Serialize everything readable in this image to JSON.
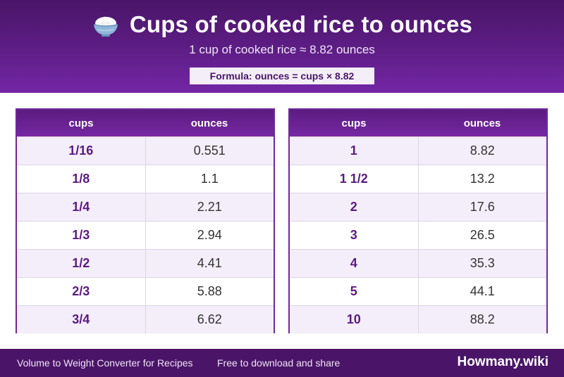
{
  "header": {
    "title": "Cups of cooked rice to ounces",
    "subtitle": "1 cup of cooked rice ≈ 8.82 ounces",
    "formula": "Formula: ounces = cups × 8.82",
    "icon": "rice-bowl-icon"
  },
  "tables": [
    {
      "col_cups": "cups",
      "col_ounces": "ounces",
      "rows": [
        {
          "cups": "1/16",
          "ounces": "0.551"
        },
        {
          "cups": "1/8",
          "ounces": "1.1"
        },
        {
          "cups": "1/4",
          "ounces": "2.21"
        },
        {
          "cups": "1/3",
          "ounces": "2.94"
        },
        {
          "cups": "1/2",
          "ounces": "4.41"
        },
        {
          "cups": "2/3",
          "ounces": "5.88"
        },
        {
          "cups": "3/4",
          "ounces": "6.62"
        }
      ]
    },
    {
      "col_cups": "cups",
      "col_ounces": "ounces",
      "rows": [
        {
          "cups": "1",
          "ounces": "8.82"
        },
        {
          "cups": "1 1/2",
          "ounces": "13.2"
        },
        {
          "cups": "2",
          "ounces": "17.6"
        },
        {
          "cups": "3",
          "ounces": "26.5"
        },
        {
          "cups": "4",
          "ounces": "35.3"
        },
        {
          "cups": "5",
          "ounces": "44.1"
        },
        {
          "cups": "10",
          "ounces": "88.2"
        }
      ]
    }
  ],
  "footer": {
    "left": "Volume to Weight Converter for Recipes",
    "middle": "Free to download and share",
    "brand": "Howmany.wiki"
  },
  "colors": {
    "primary": "#5e1e86",
    "accent": "#7426a6",
    "row_alt": "#f4eefa"
  }
}
